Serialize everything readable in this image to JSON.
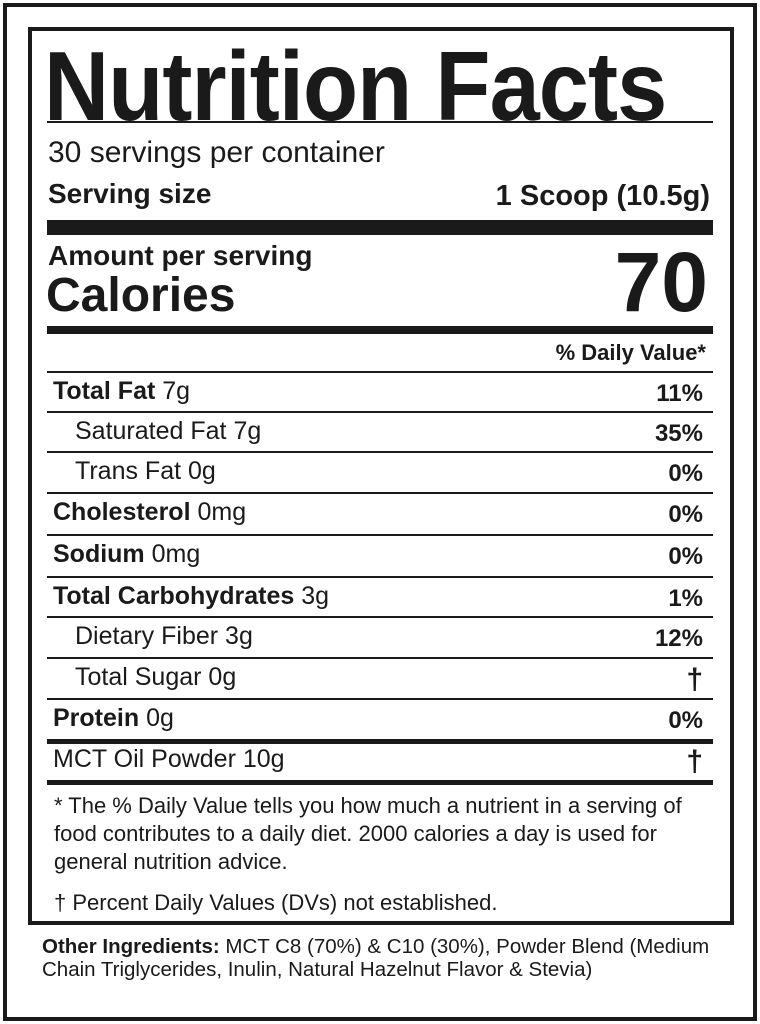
{
  "title": "Nutrition Facts",
  "servings_per_container": "30 servings per container",
  "serving_size_label": "Serving size",
  "serving_size_value": "1 Scoop (10.5g)",
  "amount_per_serving": "Amount per serving",
  "calories_label": "Calories",
  "calories_value": "70",
  "daily_value_header": "% Daily Value*",
  "nutrients": [
    {
      "name": "Total Fat",
      "amount": "7g",
      "dv": "11%",
      "bold": true
    },
    {
      "name": "Saturated Fat",
      "amount": "7g",
      "dv": "35%",
      "bold": false
    },
    {
      "name": "Trans Fat",
      "amount": "0g",
      "dv": "0%",
      "bold": false
    },
    {
      "name": "Cholesterol",
      "amount": "0mg",
      "dv": "0%",
      "bold": true
    },
    {
      "name": "Sodium",
      "amount": "0mg",
      "dv": "0%",
      "bold": true
    },
    {
      "name": "Total Carbohydrates",
      "amount": "3g",
      "dv": "1%",
      "bold": true
    },
    {
      "name": "Dietary Fiber",
      "amount": "3g",
      "dv": "12%",
      "bold": false
    },
    {
      "name": "Total Sugar",
      "amount": "0g",
      "dv": "†",
      "bold": false
    },
    {
      "name": "Protein",
      "amount": "0g",
      "dv": "0%",
      "bold": true
    },
    {
      "name": "MCT Oil Powder",
      "amount": "10g",
      "dv": "†",
      "bold": false
    }
  ],
  "footnote_dv": "* The % Daily Value tells you how much a nutrient in a serving of food contributes to a daily diet. 2000 calories a day is used for general nutrition advice.",
  "footnote_dagger": "† Percent Daily Values (DVs) not established.",
  "ingredients_label": "Other Ingredients:",
  "ingredients_text": "MCT C8 (70%) & C10 (30%), Powder Blend (Medium Chain Triglycerides, Inulin, Natural Hazelnut Flavor & Stevia)"
}
